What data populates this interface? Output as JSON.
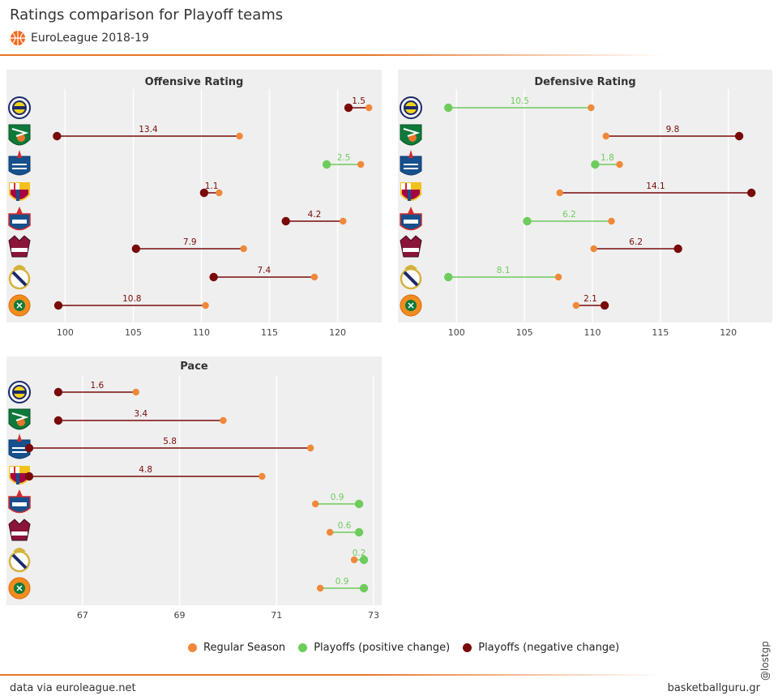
{
  "header": {
    "title": "Ratings comparison for Playoff teams",
    "subtitle": "EuroLeague 2018-19",
    "logo_icon": "euroleague-ball-icon"
  },
  "legend": {
    "items": [
      {
        "label": "Regular Season",
        "color": "#f0883a"
      },
      {
        "label": "Playoffs (positive change)",
        "color": "#6dcc5c"
      },
      {
        "label": "Playoffs (negative change)",
        "color": "#7a0a0a"
      }
    ]
  },
  "footer": {
    "source": "data via euroleague.net",
    "site": "basketballguru.gr",
    "credit": "@lostgps"
  },
  "teams": [
    {
      "name": "Fenerbahce",
      "icon": "fenerbahce-logo-icon"
    },
    {
      "name": "Zalgiris",
      "icon": "zalgiris-logo-icon"
    },
    {
      "name": "Anadolu Efes",
      "icon": "anadolu-efes-logo-icon"
    },
    {
      "name": "Barcelona",
      "icon": "barcelona-logo-icon"
    },
    {
      "name": "CSKA",
      "icon": "cska-logo-icon"
    },
    {
      "name": "Baskonia",
      "icon": "baskonia-logo-icon"
    },
    {
      "name": "Real Madrid",
      "icon": "real-madrid-logo-icon"
    },
    {
      "name": "Panathinaikos",
      "icon": "panathinaikos-logo-icon"
    }
  ],
  "chart_data": [
    {
      "type": "dumbbell",
      "title": "Offensive Rating",
      "xlim": [
        97,
        123
      ],
      "xticks": [
        100,
        105,
        110,
        115,
        120
      ],
      "regular": [
        122.3,
        112.8,
        121.7,
        111.3,
        120.4,
        113.1,
        118.3,
        110.3
      ],
      "playoffs": [
        120.8,
        99.4,
        119.2,
        110.2,
        116.2,
        105.2,
        110.9,
        99.5
      ],
      "labels": [
        "1.5",
        "13.4",
        "2.5",
        "1.1",
        "4.2",
        "7.9",
        "7.4",
        "10.8"
      ],
      "change": [
        "negative",
        "negative",
        "positive",
        "negative",
        "negative",
        "negative",
        "negative",
        "negative"
      ]
    },
    {
      "type": "dumbbell",
      "title": "Defensive Rating",
      "xlim": [
        97,
        123
      ],
      "xticks": [
        100,
        105,
        110,
        115,
        120
      ],
      "regular": [
        109.9,
        111.0,
        112.0,
        107.6,
        111.4,
        110.1,
        107.5,
        108.8
      ],
      "playoffs": [
        99.4,
        120.8,
        110.2,
        121.7,
        105.2,
        116.3,
        99.4,
        110.9
      ],
      "labels": [
        "10.5",
        "9.8",
        "1.8",
        "14.1",
        "6.2",
        "6.2",
        "8.1",
        "2.1"
      ],
      "change": [
        "positive",
        "negative",
        "positive",
        "negative",
        "positive",
        "negative",
        "positive",
        "negative"
      ]
    },
    {
      "type": "dumbbell",
      "title": "Pace",
      "xlim": [
        65.8,
        73.1
      ],
      "xticks": [
        67,
        69,
        71,
        73
      ],
      "regular": [
        68.1,
        69.9,
        71.7,
        70.7,
        71.8,
        72.1,
        72.6,
        71.9
      ],
      "playoffs": [
        66.5,
        66.5,
        65.9,
        65.9,
        72.7,
        72.7,
        72.8,
        72.8
      ],
      "labels": [
        "1.6",
        "3.4",
        "5.8",
        "4.8",
        "0.9",
        "0.6",
        "0.2",
        "0.9"
      ],
      "change": [
        "negative",
        "negative",
        "negative",
        "negative",
        "positive",
        "positive",
        "positive",
        "positive"
      ]
    }
  ]
}
